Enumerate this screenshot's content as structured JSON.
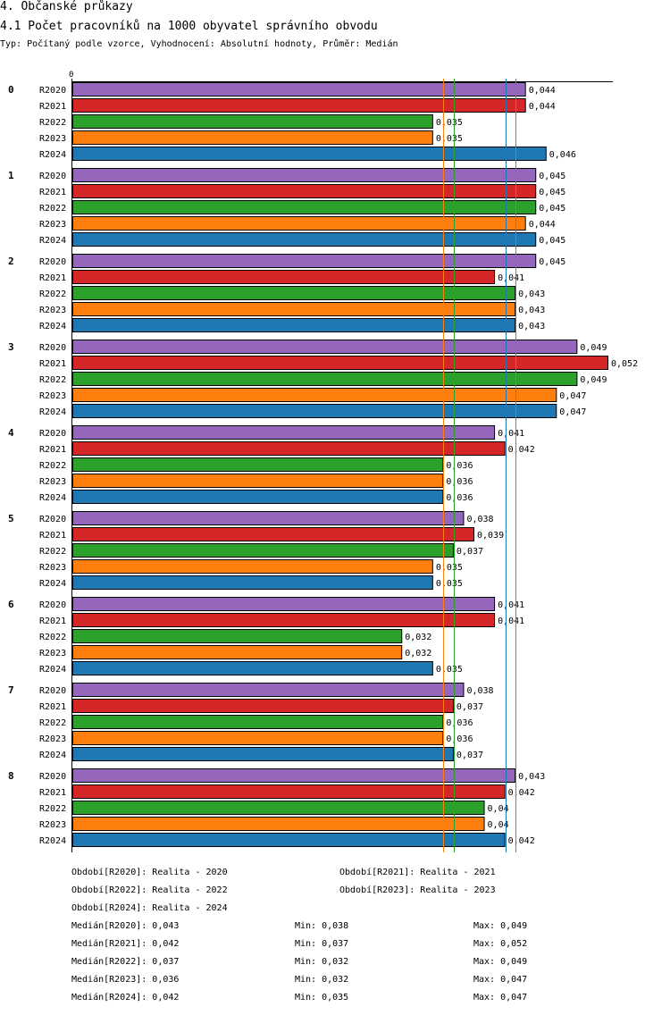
{
  "header": {
    "title": "4. Občanské průkazy",
    "subtitle": "4.1 Počet pracovníků na 1000 obyvatel správního obvodu",
    "type_line": "Typ: Počítaný podle vzorce, Vyhodnocení: Absolutní hodnoty, Průměr: Medián"
  },
  "chart_data": {
    "type": "bar",
    "orientation": "horizontal",
    "axis_zero_label": "0",
    "categories": [
      "0",
      "1",
      "2",
      "3",
      "4",
      "5",
      "6",
      "7",
      "8"
    ],
    "series": [
      {
        "name": "R2020",
        "color": "#9467bd",
        "values": [
          0.044,
          0.045,
          0.045,
          0.049,
          0.041,
          0.038,
          0.041,
          0.038,
          0.043
        ],
        "labels": [
          "0,044",
          "0,045",
          "0,045",
          "0,049",
          "0,041",
          "0,038",
          "0,041",
          "0,038",
          "0,043"
        ]
      },
      {
        "name": "R2021",
        "color": "#d62728",
        "values": [
          0.044,
          0.045,
          0.041,
          0.052,
          0.042,
          0.039,
          0.041,
          0.037,
          0.042
        ],
        "labels": [
          "0,044",
          "0,045",
          "0,041",
          "0,052",
          "0,042",
          "0,039",
          "0,041",
          "0,037",
          "0,042"
        ]
      },
      {
        "name": "R2022",
        "color": "#2ca02c",
        "values": [
          0.035,
          0.045,
          0.043,
          0.049,
          0.036,
          0.037,
          0.032,
          0.036,
          0.04
        ],
        "labels": [
          "0,035",
          "0,045",
          "0,043",
          "0,049",
          "0,036",
          "0,037",
          "0,032",
          "0,036",
          "0,04"
        ]
      },
      {
        "name": "R2023",
        "color": "#ff7f0e",
        "values": [
          0.035,
          0.044,
          0.043,
          0.047,
          0.036,
          0.035,
          0.032,
          0.036,
          0.04
        ],
        "labels": [
          "0,035",
          "0,044",
          "0,043",
          "0,047",
          "0,036",
          "0,035",
          "0,032",
          "0,036",
          "0,04"
        ]
      },
      {
        "name": "R2024",
        "color": "#1f77b4",
        "values": [
          0.046,
          0.045,
          0.043,
          0.047,
          0.036,
          0.035,
          0.035,
          0.037,
          0.042
        ],
        "labels": [
          "0,046",
          "0,045",
          "0,043",
          "0,047",
          "0,036",
          "0,035",
          "0,035",
          "0,037",
          "0,042"
        ]
      }
    ],
    "median_lines": [
      {
        "series": "R2020",
        "value": 0.043,
        "color": "#9467bd"
      },
      {
        "series": "R2021",
        "value": 0.042,
        "color": "#d62728"
      },
      {
        "series": "R2022",
        "value": 0.037,
        "color": "#2ca02c"
      },
      {
        "series": "R2023",
        "value": 0.036,
        "color": "#ff7f0e"
      },
      {
        "series": "R2024",
        "value": 0.042,
        "color": "#1f77b4"
      }
    ],
    "xlim": [
      0,
      0.052
    ]
  },
  "legend": {
    "periods": [
      "Období[R2020]: Realita - 2020",
      "Období[R2021]: Realita - 2021",
      "Období[R2022]: Realita - 2022",
      "Období[R2023]: Realita - 2023",
      "Období[R2024]: Realita - 2024"
    ],
    "stats": [
      {
        "median": "Medián[R2020]: 0,043",
        "min": "Min: 0,038",
        "max": "Max: 0,049"
      },
      {
        "median": "Medián[R2021]: 0,042",
        "min": "Min: 0,037",
        "max": "Max: 0,052"
      },
      {
        "median": "Medián[R2022]: 0,037",
        "min": "Min: 0,032",
        "max": "Max: 0,049"
      },
      {
        "median": "Medián[R2023]: 0,036",
        "min": "Min: 0,032",
        "max": "Max: 0,047"
      },
      {
        "median": "Medián[R2024]: 0,042",
        "min": "Min: 0,035",
        "max": "Max: 0,047"
      }
    ]
  }
}
